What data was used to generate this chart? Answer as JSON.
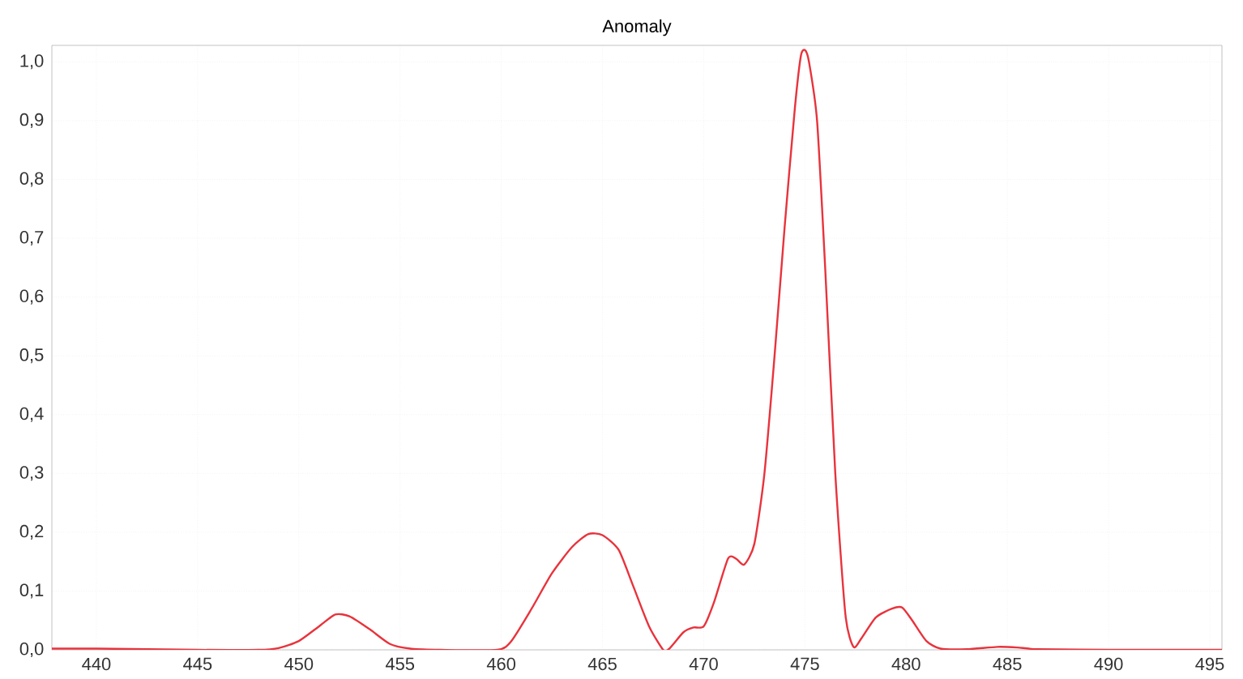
{
  "chart_data": {
    "type": "line",
    "title": "Anomaly",
    "xlim": [
      437.8,
      495.6
    ],
    "ylim": [
      0,
      1.028
    ],
    "xticks": [
      440,
      445,
      450,
      455,
      460,
      465,
      470,
      475,
      480,
      485,
      490,
      495
    ],
    "yticks": [
      {
        "value": 0,
        "label": "0,0"
      },
      {
        "value": 0.1,
        "label": "0,1"
      },
      {
        "value": 0.2,
        "label": "0,2"
      },
      {
        "value": 0.3,
        "label": "0,3"
      },
      {
        "value": 0.4,
        "label": "0,4"
      },
      {
        "value": 0.5,
        "label": "0,5"
      },
      {
        "value": 0.6,
        "label": "0,6"
      },
      {
        "value": 0.7,
        "label": "0,7"
      },
      {
        "value": 0.8,
        "label": "0,8"
      },
      {
        "value": 0.9,
        "label": "0,9"
      },
      {
        "value": 1.0,
        "label": "1,0"
      }
    ],
    "grid": true,
    "marker": "none",
    "line_style": "solid",
    "series": [
      {
        "color": "#e8333c",
        "x": [
          437.8,
          440,
          445,
          448,
          449,
          450,
          451,
          451.8,
          452.5,
          453.5,
          454.5,
          455.5,
          457,
          459.8,
          460.5,
          461.5,
          462.5,
          463.5,
          464.3,
          465,
          465.8,
          466.5,
          467.3,
          468,
          468.3,
          469,
          469.5,
          470,
          470.5,
          471.2,
          471.6,
          472,
          472.5,
          473,
          473.5,
          474,
          474.5,
          474.8,
          475,
          475.2,
          475.6,
          476,
          476.5,
          477,
          477.4,
          477.8,
          478.5,
          479.3,
          479.8,
          480.3,
          481,
          481.7,
          483,
          484.5,
          485.5,
          486.5,
          490,
          495.6
        ],
        "values": [
          0.002,
          0.002,
          0.0,
          0.0,
          0.003,
          0.015,
          0.04,
          0.06,
          0.057,
          0.035,
          0.01,
          0.002,
          0.0,
          0.0,
          0.015,
          0.07,
          0.13,
          0.175,
          0.197,
          0.195,
          0.17,
          0.11,
          0.04,
          0.0,
          0.002,
          0.03,
          0.038,
          0.04,
          0.08,
          0.155,
          0.155,
          0.145,
          0.18,
          0.3,
          0.5,
          0.72,
          0.92,
          1.01,
          1.02,
          1.0,
          0.9,
          0.65,
          0.3,
          0.06,
          0.005,
          0.02,
          0.055,
          0.07,
          0.072,
          0.05,
          0.015,
          0.002,
          0.001,
          0.005,
          0.004,
          0.001,
          0.0,
          0.0
        ]
      }
    ]
  }
}
